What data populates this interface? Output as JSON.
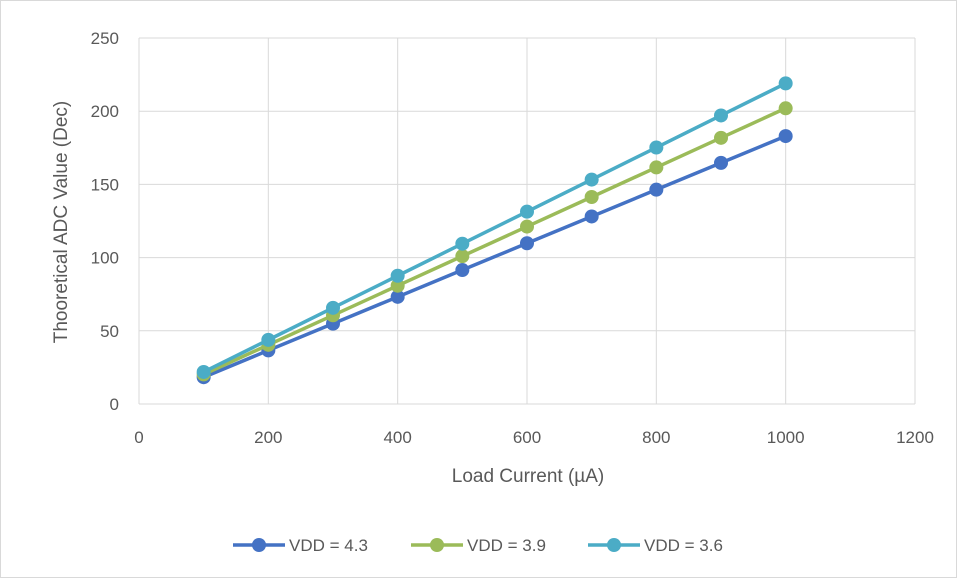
{
  "chart_data": {
    "type": "line",
    "title": "",
    "xlabel": "Load Current (µA)",
    "ylabel": "Thooretical ADC Value (Dec)",
    "xlim": [
      0,
      1200
    ],
    "ylim": [
      0,
      250
    ],
    "x_ticks": [
      0,
      200,
      400,
      600,
      800,
      1000,
      1200
    ],
    "y_ticks": [
      0,
      50,
      100,
      150,
      200,
      250
    ],
    "grid": true,
    "legend_position": "bottom",
    "x": [
      100,
      200,
      300,
      400,
      500,
      600,
      700,
      800,
      900,
      1000
    ],
    "series": [
      {
        "name": "VDD = 4.3",
        "color": "#4472c4",
        "values": [
          18.3,
          36.6,
          54.9,
          73.2,
          91.5,
          109.8,
          128.1,
          146.4,
          164.7,
          183
        ]
      },
      {
        "name": "VDD = 3.9",
        "color": "#9bbb59",
        "values": [
          20.2,
          40.4,
          60.6,
          80.8,
          101,
          121.2,
          141.4,
          161.6,
          181.8,
          202
        ]
      },
      {
        "name": "VDD = 3.6",
        "color": "#4bacc6",
        "values": [
          21.9,
          43.8,
          65.7,
          87.6,
          109.5,
          131.4,
          153.3,
          175.2,
          197.1,
          219
        ]
      }
    ]
  }
}
